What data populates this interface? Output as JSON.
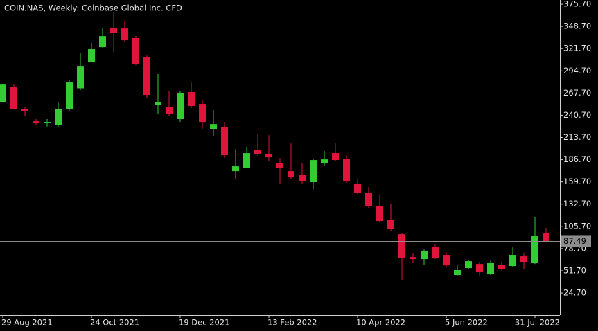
{
  "chart_data": {
    "type": "candlestick",
    "title": "COIN.NAS, Weekly:  Coinbase Global Inc. CFD",
    "categories": [
      "29 Aug 2021",
      null,
      null,
      null,
      null,
      null,
      null,
      null,
      "24 Oct 2021",
      null,
      null,
      null,
      null,
      null,
      null,
      null,
      "19 Dec 2021",
      null,
      null,
      null,
      null,
      null,
      null,
      null,
      "13 Feb 2022",
      null,
      null,
      null,
      null,
      null,
      null,
      null,
      "10 Apr 2022",
      null,
      null,
      null,
      null,
      null,
      null,
      null,
      "5 Jun 2022",
      null,
      null,
      null,
      null,
      null,
      null,
      null,
      "31 Jul 2022",
      null
    ],
    "series": [
      {
        "up_color": "#33cc33",
        "down_color": "#e0153c",
        "open": [
          256.2,
          275.5,
          247.8,
          233.4,
          231.0,
          229.2,
          248.6,
          273.5,
          305.8,
          323.5,
          347.1,
          346.2,
          334.5,
          310.9,
          253.6,
          251.1,
          236.0,
          268.8,
          254.5,
          224.2,
          226.7,
          172.8,
          177.0,
          198.9,
          193.9,
          182.1,
          172.8,
          168.6,
          159.4,
          182.1,
          194.7,
          188.0,
          157.7,
          146.7,
          130.7,
          113.9,
          96.2,
          68.4,
          65.9,
          81.1,
          71.0,
          46.6,
          55.0,
          60.0,
          47.4,
          59.2,
          57.5,
          69.3,
          60.9,
          97.9
        ],
        "high": [
          278.0,
          278.0,
          251.0,
          236.0,
          236.0,
          256.2,
          283.9,
          316.8,
          328.6,
          347.1,
          365.6,
          354.7,
          337.0,
          313.4,
          290.7,
          270.5,
          270.5,
          281.4,
          258.7,
          246.9,
          232.6,
          199.7,
          202.3,
          217.4,
          216.6,
          188.8,
          206.5,
          182.1,
          188.0,
          197.2,
          207.3,
          192.2,
          163.6,
          153.5,
          143.4,
          133.2,
          97.0,
          72.6,
          77.7,
          83.6,
          74.3,
          58.3,
          65.1,
          62.5,
          64.2,
          62.5,
          80.2,
          72.6,
          117.3,
          103.8
        ],
        "low": [
          256.2,
          247.8,
          240.0,
          229.0,
          227.0,
          225.9,
          246.0,
          271.3,
          305.0,
          322.7,
          317.6,
          329.4,
          301.6,
          261.2,
          241.9,
          240.2,
          232.6,
          249.4,
          224.2,
          214.9,
          188.8,
          162.7,
          176.2,
          190.5,
          184.6,
          156.8,
          163.6,
          156.8,
          150.9,
          178.7,
          184.6,
          158.5,
          145.0,
          128.2,
          110.5,
          100.4,
          40.6,
          60.9,
          59.2,
          65.9,
          55.8,
          45.7,
          54.1,
          45.7,
          46.6,
          51.6,
          56.7,
          54.1,
          60.0,
          86.1
        ],
        "close": [
          278.0,
          248.6,
          246.0,
          230.9,
          232.6,
          248.6,
          280.6,
          299.9,
          321.0,
          336.9,
          341.2,
          331.9,
          303.3,
          265.4,
          256.2,
          242.7,
          268.0,
          252.0,
          232.6,
          230.0,
          192.2,
          178.7,
          194.7,
          193.9,
          189.6,
          177.0,
          165.2,
          160.2,
          186.3,
          187.1,
          186.3,
          160.2,
          146.7,
          130.7,
          112.2,
          102.9,
          67.6,
          65.9,
          75.9,
          67.6,
          58.3,
          52.5,
          63.4,
          49.9,
          60.9,
          54.1,
          71.0,
          62.5,
          93.7,
          87.5
        ]
      }
    ],
    "current_price": 87.49,
    "current_price_color": "#8c8c8c",
    "ylim": [
      -2.2,
      380.8
    ],
    "yticks": [
      {
        "value": 375.7,
        "label": "375.70"
      },
      {
        "value": 348.7,
        "label": "348.70"
      },
      {
        "value": 321.7,
        "label": "321.70"
      },
      {
        "value": 294.7,
        "label": "294.70"
      },
      {
        "value": 267.7,
        "label": "267.70"
      },
      {
        "value": 240.7,
        "label": "240.70"
      },
      {
        "value": 213.7,
        "label": "213.70"
      },
      {
        "value": 186.7,
        "label": "186.70"
      },
      {
        "value": 159.7,
        "label": "159.70"
      },
      {
        "value": 132.7,
        "label": "132.70"
      },
      {
        "value": 105.7,
        "label": "105.70"
      },
      {
        "value": 78.7,
        "label": "78.70"
      },
      {
        "value": 51.7,
        "label": "51.70"
      },
      {
        "value": 24.7,
        "label": "24.70"
      }
    ],
    "grid": false
  }
}
